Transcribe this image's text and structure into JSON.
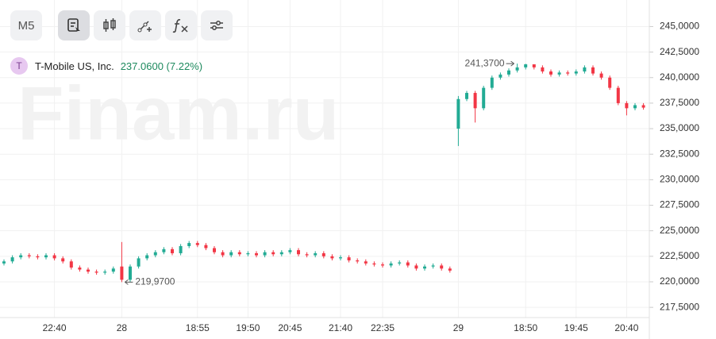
{
  "chart_data": {
    "type": "candlestick",
    "title": "T-Mobile US, Inc.",
    "avatar": "T",
    "price_label": "237.0600 (7.22%)",
    "watermark": "Finam.ru",
    "interval": "M5",
    "up_color": "#22ab94",
    "down_color": "#f23645",
    "grid": true,
    "categories": [
      null,
      null,
      null,
      null,
      null,
      null,
      "22:40",
      null,
      null,
      null,
      null,
      null,
      null,
      null,
      "28",
      null,
      null,
      null,
      null,
      null,
      null,
      null,
      null,
      "18:55",
      null,
      null,
      null,
      null,
      null,
      "19:50",
      null,
      null,
      null,
      null,
      "20:45",
      null,
      null,
      null,
      null,
      null,
      "21:40",
      null,
      null,
      null,
      null,
      "22:35",
      null,
      null,
      null,
      null,
      null,
      null,
      null,
      null,
      "29",
      null,
      null,
      null,
      null,
      null,
      null,
      null,
      "18:50",
      null,
      null,
      null,
      null,
      null,
      "19:45",
      null,
      null,
      null,
      null,
      null,
      "20:40",
      null,
      null
    ],
    "series": [
      {
        "name": "Open",
        "values": [
          221.8,
          222.0,
          222.4,
          222.6,
          222.5,
          222.4,
          222.6,
          222.3,
          222.0,
          221.4,
          221.2,
          221.0,
          220.9,
          221.0,
          221.5,
          220.2,
          221.5,
          222.3,
          222.6,
          222.9,
          223.2,
          222.8,
          223.5,
          223.8,
          223.6,
          223.3,
          222.9,
          222.6,
          222.9,
          222.7,
          222.8,
          222.6,
          222.9,
          222.7,
          222.9,
          223.1,
          222.7,
          222.6,
          222.8,
          222.5,
          222.3,
          222.4,
          222.1,
          222.0,
          221.8,
          221.7,
          221.6,
          221.8,
          221.9,
          221.6,
          221.3,
          221.5,
          221.6,
          221.3,
          235.0,
          237.9,
          238.5,
          237.0,
          239.0,
          240.0,
          240.3,
          240.7,
          241.0,
          241.3,
          241.0,
          240.6,
          240.3,
          240.5,
          240.4,
          240.6,
          241.0,
          240.4,
          240.0,
          239.0,
          237.5,
          237.0,
          237.3
        ]
      },
      {
        "name": "High",
        "values": [
          222.2,
          222.6,
          222.8,
          222.8,
          222.7,
          222.8,
          222.8,
          222.5,
          222.2,
          221.6,
          221.4,
          221.2,
          221.2,
          221.5,
          223.9,
          221.7,
          222.5,
          222.8,
          223.1,
          223.4,
          223.4,
          223.7,
          224.0,
          224.0,
          223.8,
          223.5,
          223.1,
          223.1,
          223.1,
          223.0,
          223.0,
          223.1,
          223.1,
          223.1,
          223.3,
          223.3,
          222.9,
          223.0,
          223.0,
          222.7,
          222.6,
          222.6,
          222.3,
          222.2,
          222.0,
          221.9,
          222.0,
          222.1,
          222.1,
          221.8,
          221.7,
          221.8,
          221.8,
          221.5,
          238.2,
          238.7,
          238.7,
          239.2,
          240.2,
          240.5,
          240.9,
          241.37,
          241.35,
          241.3,
          241.2,
          240.8,
          240.7,
          240.7,
          240.8,
          241.2,
          241.2,
          240.6,
          240.2,
          239.2,
          237.7,
          237.5,
          237.5
        ]
      },
      {
        "name": "Low",
        "values": [
          221.6,
          221.8,
          222.2,
          222.3,
          222.2,
          222.2,
          222.1,
          221.8,
          221.2,
          221.0,
          220.8,
          220.7,
          220.7,
          220.8,
          219.97,
          220.0,
          221.3,
          222.1,
          222.4,
          222.7,
          222.6,
          222.6,
          223.3,
          223.4,
          223.1,
          222.7,
          222.4,
          222.4,
          222.5,
          222.5,
          222.4,
          222.4,
          222.5,
          222.5,
          222.7,
          222.5,
          222.4,
          222.4,
          222.3,
          222.1,
          222.1,
          221.9,
          221.8,
          221.6,
          221.5,
          221.4,
          221.4,
          221.6,
          221.4,
          221.1,
          221.1,
          221.3,
          221.1,
          220.9,
          233.3,
          237.7,
          235.6,
          236.8,
          238.8,
          239.8,
          240.1,
          240.5,
          240.8,
          240.8,
          240.4,
          240.1,
          240.1,
          240.2,
          240.2,
          240.4,
          240.2,
          239.8,
          238.8,
          237.3,
          236.3,
          236.8,
          236.86
        ]
      },
      {
        "name": "Close",
        "values": [
          222.0,
          222.4,
          222.6,
          222.5,
          222.4,
          222.6,
          222.3,
          222.0,
          221.4,
          221.2,
          221.0,
          220.9,
          221.0,
          221.3,
          220.2,
          221.5,
          222.3,
          222.6,
          222.9,
          223.2,
          222.8,
          223.5,
          223.8,
          223.6,
          223.3,
          222.9,
          222.6,
          222.9,
          222.7,
          222.8,
          222.6,
          222.9,
          222.7,
          222.9,
          223.1,
          222.7,
          222.6,
          222.8,
          222.5,
          222.3,
          222.4,
          222.1,
          222.0,
          221.8,
          221.7,
          221.6,
          221.8,
          221.9,
          221.6,
          221.3,
          221.5,
          221.6,
          221.3,
          221.1,
          237.9,
          238.5,
          237.0,
          239.0,
          240.0,
          240.3,
          240.7,
          241.0,
          241.3,
          241.0,
          240.6,
          240.3,
          240.5,
          240.4,
          240.6,
          241.0,
          240.4,
          240.0,
          239.0,
          237.5,
          237.0,
          237.3,
          237.06
        ]
      }
    ],
    "max_label": "241,3700",
    "min_label": "219,9700",
    "ylim": [
      216.5,
      247.6
    ],
    "yticks": [
      {
        "value": 217.5,
        "label": "217,5000"
      },
      {
        "value": 220,
        "label": "220,0000"
      },
      {
        "value": 222.5,
        "label": "222,5000"
      },
      {
        "value": 225,
        "label": "225,0000"
      },
      {
        "value": 227.5,
        "label": "227,5000"
      },
      {
        "value": 230,
        "label": "230,0000"
      },
      {
        "value": 232.5,
        "label": "232,5000"
      },
      {
        "value": 235,
        "label": "235,0000"
      },
      {
        "value": 237.5,
        "label": "237,5000"
      },
      {
        "value": 240,
        "label": "240,0000"
      },
      {
        "value": 242.5,
        "label": "242,5000"
      },
      {
        "value": 245,
        "label": "245,0000"
      }
    ]
  }
}
